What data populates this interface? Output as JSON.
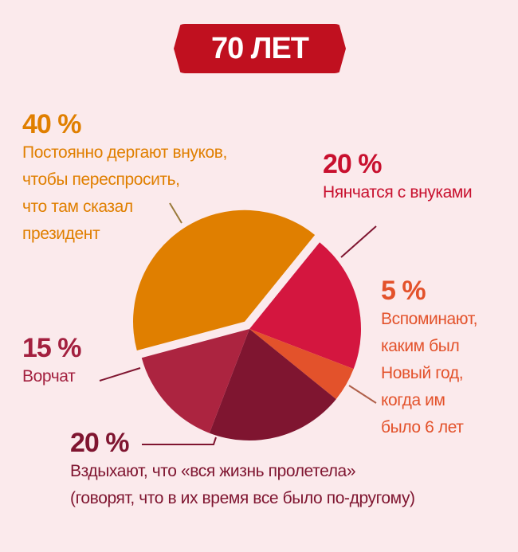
{
  "title": "70 ЛЕТ",
  "chart_data": {
    "type": "pie",
    "title": "70 ЛЕТ",
    "slices": [
      {
        "value": 20,
        "label": "20 %",
        "text": [
          "Нянчатся с внуками"
        ],
        "color": "#d4163f",
        "text_color": "#c8102e"
      },
      {
        "value": 5,
        "label": "5 %",
        "text": [
          "Вспоминают,",
          "каким был",
          "Новый год,",
          "когда им",
          "было 6 лет"
        ],
        "color": "#e3522b",
        "text_color": "#e3522b"
      },
      {
        "value": 20,
        "label": "20 %",
        "text": [
          "Вздыхают, что «вся жизнь пролетела»",
          "(говорят, что в их время все было по-другому)"
        ],
        "color": "#7f1530",
        "text_color": "#7f1530"
      },
      {
        "value": 15,
        "label": "15 %",
        "text": [
          "Ворчат"
        ],
        "color": "#ac2440",
        "text_color": "#a3203f"
      },
      {
        "value": 40,
        "label": "40 %",
        "text": [
          "Постоянно дергают внуков,",
          "чтобы переспросить,",
          "что там сказал",
          "президент"
        ],
        "color": "#e07f00",
        "text_color": "#e07f00",
        "exploded": true
      }
    ]
  }
}
